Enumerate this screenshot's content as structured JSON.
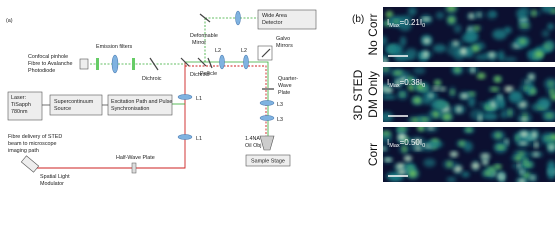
{
  "panel_a": {
    "tag": "(a)",
    "wide_area_detector": [
      "Wide Area",
      "Detector"
    ],
    "deformable_mirror": [
      "Deformable",
      "Mirror"
    ],
    "galvo_mirrors": [
      "Galvo",
      "Mirrors"
    ],
    "emission_filters": "Emission filters",
    "l2_left": "L2",
    "l2_right": "L2",
    "pellicle": "Pellicle",
    "dichroic_left": "Dichroic",
    "dichroic_right": "Dichroic",
    "confocal": [
      "Confocal pinhole",
      "Fibre to Avalanche",
      "Photodiode"
    ],
    "laser": [
      "Laser:",
      "TiSapph",
      "780nm"
    ],
    "supercontinuum": [
      "Supercontinuum",
      "Source"
    ],
    "excitation": [
      "Excitation Path and Pulse",
      "Synchronisation"
    ],
    "l1_top": "L1",
    "l1_bottom": "L1",
    "quarter_wave": [
      "Quarter-",
      "Wave",
      "Plate"
    ],
    "l3_top": "L3",
    "l3_bottom": "L3",
    "objective": [
      "1.4NA",
      "Oil Obj"
    ],
    "sample_stage": "Sample Stage",
    "fibre_delivery": [
      "Fibre delivery of STED",
      "beam to microscope",
      "imaging path"
    ],
    "half_wave": "Half-Wave Plate",
    "slm": [
      "Spatial Light",
      "Modulator"
    ]
  },
  "panel_b": {
    "tag": "(b)",
    "group": "3D STED",
    "rows": [
      {
        "name": "No Corr",
        "i": "I",
        "max": "Max",
        "eq": "=0.21",
        "i0": "I",
        "zero": "0"
      },
      {
        "name": "DM Only",
        "i": "I",
        "max": "Max",
        "eq": "=0.38",
        "i0": "I",
        "zero": "0"
      },
      {
        "name": "Corr",
        "i": "I",
        "max": "Max",
        "eq": "=0.50",
        "i0": "I",
        "zero": "0"
      }
    ]
  }
}
